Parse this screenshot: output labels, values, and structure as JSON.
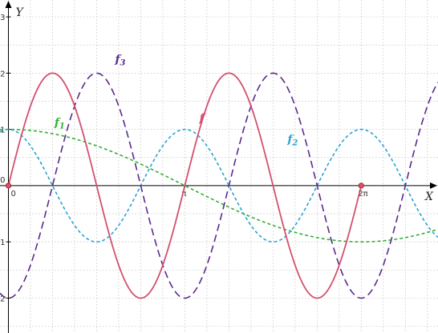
{
  "chart_data": {
    "type": "line",
    "xlabel": "X",
    "ylabel": "Y",
    "xlim": [
      -0.15,
      7.65
    ],
    "ylim": [
      -2.62,
      3.3
    ],
    "grid": true,
    "x_ticks": [
      {
        "value": 0,
        "label": "0"
      },
      {
        "value": 3.14159,
        "label": "π"
      },
      {
        "value": 6.28318,
        "label": "2π"
      }
    ],
    "y_ticks": [
      {
        "value": -2,
        "label": "-2"
      },
      {
        "value": -1,
        "label": "-1"
      },
      {
        "value": 0,
        "label": "0"
      },
      {
        "value": 1,
        "label": "1"
      },
      {
        "value": 2,
        "label": "2"
      },
      {
        "value": 3,
        "label": "3"
      }
    ],
    "series": [
      {
        "name": "f",
        "name_sub": "",
        "color": "#d4506e",
        "dash": "solid",
        "formula": "2*sin(2x)",
        "domain": [
          0,
          6.28318
        ],
        "label_at": [
          3.4,
          1.14
        ],
        "x": [
          0,
          0.3927,
          0.7854,
          1.1781,
          1.5708,
          1.9635,
          2.3562,
          2.7489,
          3.1416,
          3.5343,
          3.927,
          4.3197,
          4.7124,
          5.1051,
          5.4978,
          5.8905,
          6.2832
        ],
        "values": [
          0,
          1.414,
          2,
          1.414,
          0,
          -1.414,
          -2,
          -1.414,
          0,
          1.414,
          2,
          1.414,
          0,
          -1.414,
          -2,
          -1.414,
          0
        ]
      },
      {
        "name": "f",
        "name_sub": "1",
        "color": "#33b033",
        "dash": "short",
        "formula": "cos(x/2)",
        "domain": [
          -0.15,
          7.65
        ],
        "label_at": [
          0.82,
          1.06
        ],
        "x": [
          0,
          1.5708,
          3.1416,
          4.7124,
          6.2832
        ],
        "values": [
          1,
          0.707,
          0,
          -0.707,
          -1
        ]
      },
      {
        "name": "f",
        "name_sub": "2",
        "color": "#2aa3cf",
        "dash": "short",
        "formula": "cos(2x)",
        "domain": [
          -0.15,
          7.65
        ],
        "label_at": [
          4.97,
          0.76
        ],
        "x": [
          0,
          0.7854,
          1.5708,
          2.3562,
          3.1416,
          3.927,
          4.7124,
          5.4978,
          6.2832
        ],
        "values": [
          1,
          0,
          -1,
          0,
          1,
          0,
          -1,
          0,
          1
        ]
      },
      {
        "name": "f",
        "name_sub": "3",
        "color": "#5b2a8c",
        "dash": "long",
        "formula": "-2*cos(2x)",
        "domain": [
          -0.15,
          7.65
        ],
        "label_at": [
          1.9,
          2.18
        ],
        "x": [
          0,
          0.7854,
          1.5708,
          2.3562,
          3.1416,
          3.927,
          4.7124,
          5.4978,
          6.2832
        ],
        "values": [
          -2,
          0,
          2,
          0,
          -2,
          0,
          2,
          0,
          -2
        ]
      }
    ],
    "marked_points": [
      {
        "x": 0,
        "y": 0,
        "color": "#e05060"
      },
      {
        "x": 6.28318,
        "y": 0,
        "color": "#e05060"
      }
    ]
  }
}
